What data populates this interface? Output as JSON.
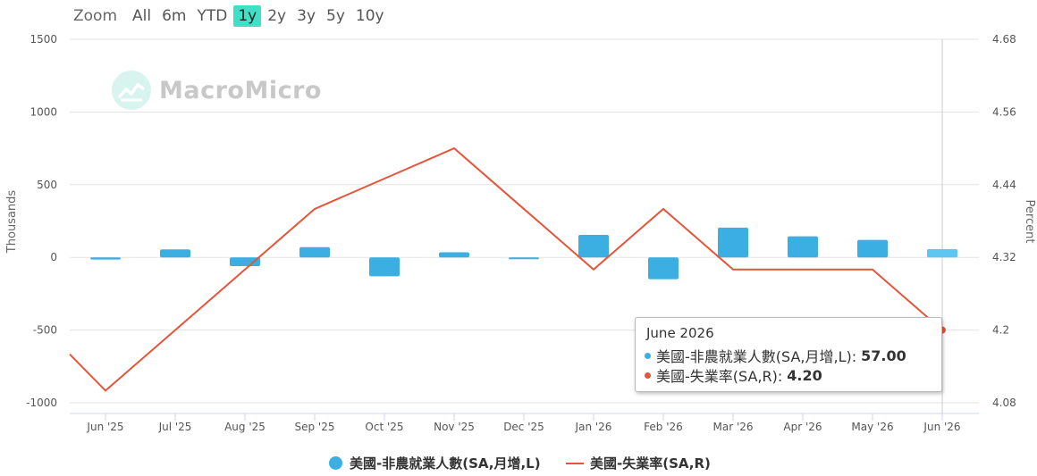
{
  "zoom": {
    "label": "Zoom",
    "options": [
      "All",
      "6m",
      "YTD",
      "1y",
      "2y",
      "3y",
      "5y",
      "10y"
    ],
    "active": "1y"
  },
  "watermark": "MacroMicro",
  "colors": {
    "bar": "#3baee2",
    "bar_highlight": "#5dc7f2",
    "line": "#e4553b",
    "accent": "#3fe0c5"
  },
  "chart_data": {
    "type": "bar",
    "categories": [
      "Jun '25",
      "Jul '25",
      "Aug '25",
      "Sep '25",
      "Oct '25",
      "Nov '25",
      "Dec '25",
      "Jan '26",
      "Feb '26",
      "Mar '26",
      "Apr '26",
      "May '26",
      "Jun '26"
    ],
    "series": [
      {
        "name": "美國-非農就業人數(SA,月增,L)",
        "type": "bar",
        "axis": "left",
        "values": [
          -15,
          55,
          -60,
          70,
          -130,
          35,
          -8,
          155,
          -150,
          205,
          145,
          120,
          57
        ]
      },
      {
        "name": "美國-失業率(SA,R)",
        "type": "line",
        "axis": "right",
        "values": [
          4.1,
          4.2,
          4.3,
          4.4,
          4.45,
          4.5,
          4.4,
          4.3,
          4.4,
          4.3,
          4.3,
          4.3,
          4.2
        ]
      }
    ],
    "ylabel_left": "Thousands",
    "ylabel_right": "Percent",
    "ylim_left": [
      -1000,
      1500
    ],
    "ylim_right": [
      4.08,
      4.68
    ],
    "yticks_left": [
      "1500",
      "1000",
      "500",
      "0",
      "-500",
      "-1000"
    ],
    "yticks_right": [
      "4.68",
      "4.56",
      "4.44",
      "4.32",
      "4.2",
      "4.08"
    ],
    "grid": true,
    "legend_position": "bottom"
  },
  "tooltip": {
    "title": "June 2026",
    "rows": [
      {
        "label": "美國-非農就業人數(SA,月增,L):",
        "value": "57.00"
      },
      {
        "label": "美國-失業率(SA,R):",
        "value": "4.20"
      }
    ]
  },
  "legend": {
    "items": [
      "美國-非農就業人數(SA,月增,L)",
      "美國-失業率(SA,R)"
    ]
  }
}
